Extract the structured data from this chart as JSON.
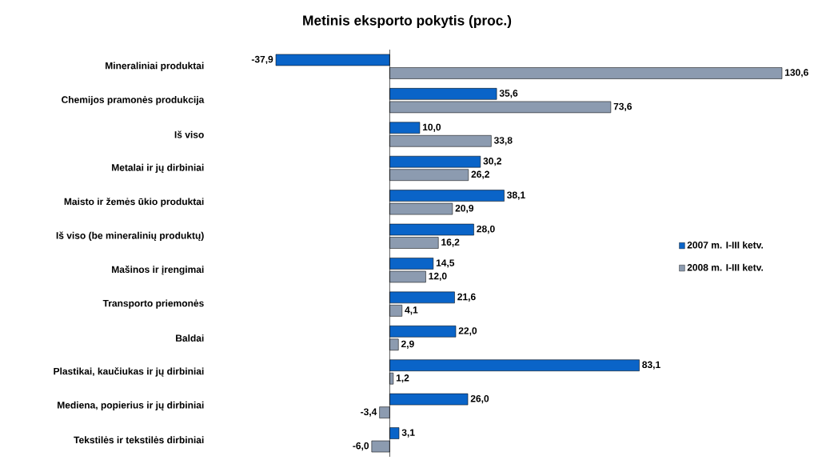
{
  "chart_data": {
    "type": "bar",
    "orientation": "horizontal",
    "title": "Metinis eksporto pokytis (proc.)",
    "categories": [
      "Mineraliniai produktai",
      "Chemijos pramonės produkcija",
      "Iš viso",
      "Metalai ir jų dirbiniai",
      "Maisto ir žemės ūkio produktai",
      "Iš viso (be mineralinių produktų)",
      "Mašinos ir įrengimai",
      "Transporto priemonės",
      "Baldai",
      "Plastikai, kaučiukas ir  jų dirbiniai",
      "Mediena, popierius ir jų dirbiniai",
      "Tekstilės ir tekstilės dirbiniai"
    ],
    "series": [
      {
        "name": "2007 m. I-III ketv.",
        "color": "#0a64c8",
        "values": [
          -37.9,
          35.6,
          10.0,
          30.2,
          38.1,
          28.0,
          14.5,
          21.6,
          22.0,
          83.1,
          26.0,
          3.1
        ],
        "value_labels": [
          "-37,9",
          "35,6",
          "10,0",
          "30,2",
          "38,1",
          "28,0",
          "14,5",
          "21,6",
          "22,0",
          "83,1",
          "26,0",
          "3,1"
        ]
      },
      {
        "name": "2008 m. I-III ketv.",
        "color": "#8c9bb0",
        "values": [
          130.6,
          73.6,
          33.8,
          26.2,
          20.9,
          16.2,
          12.0,
          4.1,
          2.9,
          1.2,
          -3.4,
          -6.0
        ],
        "value_labels": [
          "130,6",
          "73,6",
          "33,8",
          "26,2",
          "20,9",
          "16,2",
          "12,0",
          "4,1",
          "2,9",
          "1,2",
          "-3,4",
          "-6,0"
        ]
      }
    ],
    "legend": "right",
    "tick_labels": "y"
  }
}
